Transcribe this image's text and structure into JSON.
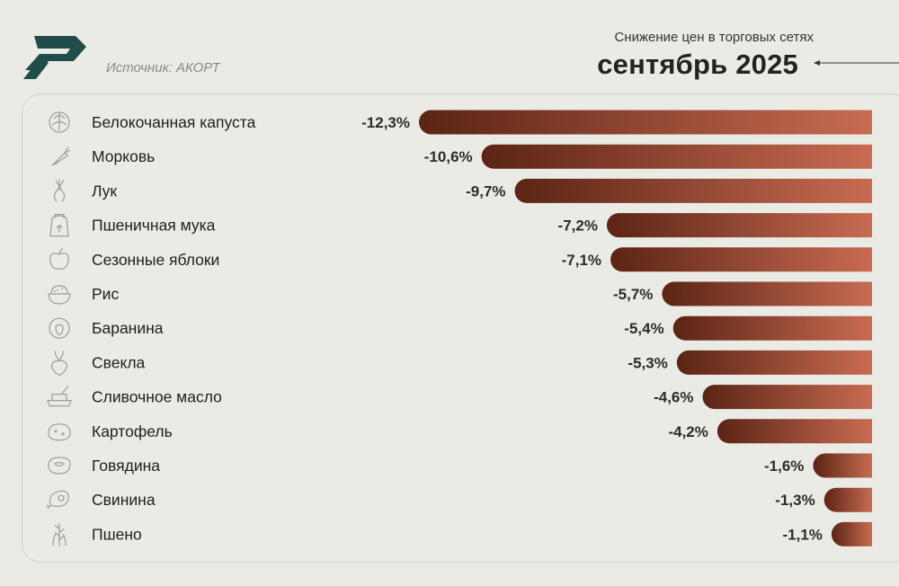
{
  "header": {
    "source": "Источник: АКОРТ",
    "subtitle": "Снижение цен в торговых сетях",
    "title": "сентябрь 2025"
  },
  "colors": {
    "bar_dark": "#5b2414",
    "bar_light": "#c86b52",
    "logo": "#1f4e4a"
  },
  "chart_data": {
    "type": "bar",
    "orientation": "horizontal",
    "title": "сентябрь 2025",
    "subtitle": "Снижение цен в торговых сетях",
    "categories": [
      "Белокочанная капуста",
      "Морковь",
      "Лук",
      "Пшеничная мука",
      "Сезонные яблоки",
      "Рис",
      "Баранина",
      "Свекла",
      "Сливочное масло",
      "Картофель",
      "Говядина",
      "Свинина",
      "Пшено"
    ],
    "values": [
      -12.3,
      -10.6,
      -9.7,
      -7.2,
      -7.1,
      -5.7,
      -5.4,
      -5.3,
      -4.6,
      -4.2,
      -1.6,
      -1.3,
      -1.1
    ],
    "value_labels": [
      "-12,3%",
      "-10,6%",
      "-9,7%",
      "-7,2%",
      "-7,1%",
      "-5,7%",
      "-5,4%",
      "-5,3%",
      "-4,6%",
      "-4,2%",
      "-1,6%",
      "-1,3%",
      "-1,1%"
    ],
    "icons": [
      "cabbage-icon",
      "carrot-icon",
      "onion-icon",
      "flour-bag-icon",
      "apple-icon",
      "rice-bowl-icon",
      "sheep-icon",
      "beet-icon",
      "butter-icon",
      "potato-icon",
      "steak-icon",
      "pork-ham-icon",
      "millet-icon"
    ],
    "unit": "%",
    "xlim": [
      -12.3,
      0
    ],
    "grid": false,
    "legend": "none"
  }
}
